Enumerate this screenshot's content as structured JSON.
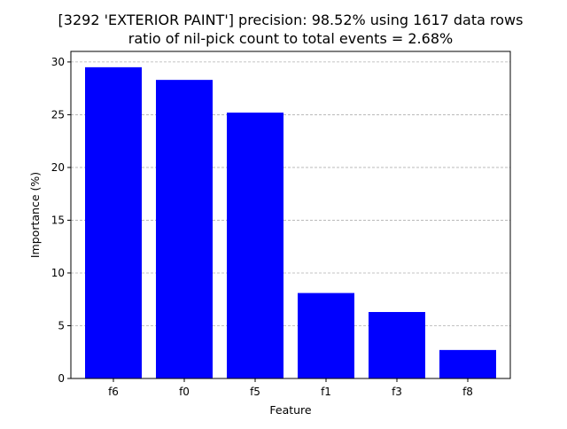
{
  "chart_data": {
    "type": "bar",
    "title_lines": [
      "[3292 'EXTERIOR PAINT'] precision: 98.52% using 1617 data rows",
      "ratio of nil-pick count to total events = 2.68%"
    ],
    "xlabel": "Feature",
    "ylabel": "Importance (%)",
    "categories": [
      "f6",
      "f0",
      "f5",
      "f1",
      "f3",
      "f8"
    ],
    "values": [
      29.5,
      28.3,
      25.2,
      8.1,
      6.3,
      2.7
    ],
    "ylim": [
      0,
      31.0
    ],
    "yticks": [
      0,
      5,
      10,
      15,
      20,
      25,
      30
    ],
    "grid": "y-dashed",
    "bar_color": "#0000ff",
    "grid_color": "#b0b0b0"
  }
}
